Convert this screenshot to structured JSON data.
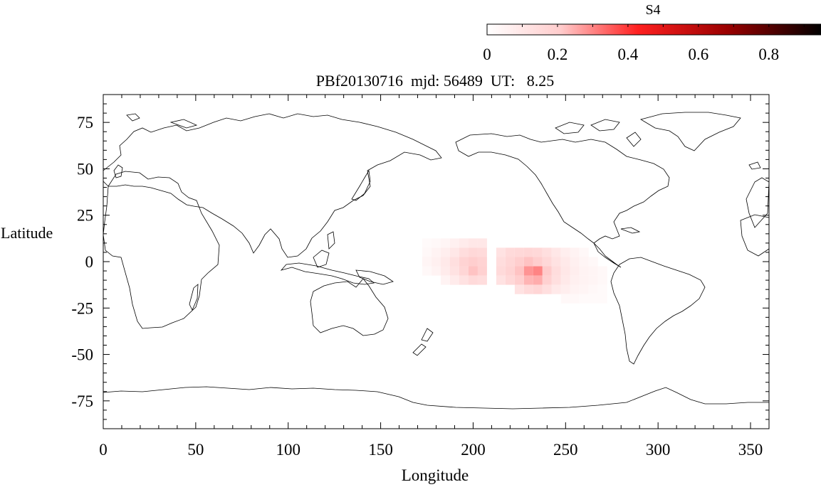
{
  "chart_data": {
    "type": "heatmap",
    "title": "PBf20130716  mjd: 56489  UT:   8.25",
    "xlabel": "Longitude",
    "ylabel": "Latitude",
    "xlim": [
      0,
      360
    ],
    "ylim": [
      -90,
      90
    ],
    "x_ticks": [
      0,
      50,
      100,
      150,
      200,
      250,
      300,
      350
    ],
    "x_tick_labels": [
      "0",
      "50",
      "100",
      "150",
      "200",
      "250",
      "300",
      "350"
    ],
    "y_ticks": [
      75,
      50,
      25,
      0,
      -25,
      -50,
      -75
    ],
    "y_tick_labels": [
      "75",
      "50",
      "25",
      "0",
      "-25",
      "-50",
      "-75"
    ],
    "colorbar": {
      "label": "S4",
      "range": [
        0,
        0.95
      ],
      "ticks": [
        0,
        0.2,
        0.4,
        0.6,
        0.8
      ],
      "tick_labels": [
        "0",
        "0.2",
        "0.4",
        "0.6",
        "0.8"
      ],
      "colormap": [
        "#ffffff",
        "#ff9a9a",
        "#ff0000",
        "#9a0000",
        "#000000"
      ]
    },
    "s4_cells": [
      {
        "lon": 175,
        "lat": 10,
        "s4": 0.02
      },
      {
        "lon": 180,
        "lat": 10,
        "s4": 0.03
      },
      {
        "lon": 185,
        "lat": 10,
        "s4": 0.04
      },
      {
        "lon": 190,
        "lat": 10,
        "s4": 0.06
      },
      {
        "lon": 195,
        "lat": 10,
        "s4": 0.08
      },
      {
        "lon": 200,
        "lat": 10,
        "s4": 0.1
      },
      {
        "lon": 205,
        "lat": 10,
        "s4": 0.1
      },
      {
        "lon": 175,
        "lat": 5,
        "s4": 0.03
      },
      {
        "lon": 180,
        "lat": 5,
        "s4": 0.05
      },
      {
        "lon": 185,
        "lat": 5,
        "s4": 0.07
      },
      {
        "lon": 190,
        "lat": 5,
        "s4": 0.1
      },
      {
        "lon": 195,
        "lat": 5,
        "s4": 0.14
      },
      {
        "lon": 200,
        "lat": 5,
        "s4": 0.16
      },
      {
        "lon": 205,
        "lat": 5,
        "s4": 0.15
      },
      {
        "lon": 175,
        "lat": 0,
        "s4": 0.04
      },
      {
        "lon": 180,
        "lat": 0,
        "s4": 0.06
      },
      {
        "lon": 185,
        "lat": 0,
        "s4": 0.09
      },
      {
        "lon": 190,
        "lat": 0,
        "s4": 0.13
      },
      {
        "lon": 195,
        "lat": 0,
        "s4": 0.18
      },
      {
        "lon": 200,
        "lat": 0,
        "s4": 0.2
      },
      {
        "lon": 205,
        "lat": 0,
        "s4": 0.18
      },
      {
        "lon": 175,
        "lat": -5,
        "s4": 0.03
      },
      {
        "lon": 180,
        "lat": -5,
        "s4": 0.05
      },
      {
        "lon": 185,
        "lat": -5,
        "s4": 0.08
      },
      {
        "lon": 190,
        "lat": -5,
        "s4": 0.12
      },
      {
        "lon": 195,
        "lat": -5,
        "s4": 0.17
      },
      {
        "lon": 200,
        "lat": -5,
        "s4": 0.22
      },
      {
        "lon": 205,
        "lat": -5,
        "s4": 0.19
      },
      {
        "lon": 185,
        "lat": -10,
        "s4": 0.05
      },
      {
        "lon": 190,
        "lat": -10,
        "s4": 0.08
      },
      {
        "lon": 195,
        "lat": -10,
        "s4": 0.12
      },
      {
        "lon": 200,
        "lat": -10,
        "s4": 0.15
      },
      {
        "lon": 205,
        "lat": -10,
        "s4": 0.14
      },
      {
        "lon": 215,
        "lat": 5,
        "s4": 0.12
      },
      {
        "lon": 220,
        "lat": 5,
        "s4": 0.15
      },
      {
        "lon": 225,
        "lat": 5,
        "s4": 0.16
      },
      {
        "lon": 230,
        "lat": 5,
        "s4": 0.17
      },
      {
        "lon": 235,
        "lat": 5,
        "s4": 0.16
      },
      {
        "lon": 240,
        "lat": 5,
        "s4": 0.13
      },
      {
        "lon": 245,
        "lat": 5,
        "s4": 0.1
      },
      {
        "lon": 250,
        "lat": 5,
        "s4": 0.07
      },
      {
        "lon": 255,
        "lat": 5,
        "s4": 0.05
      },
      {
        "lon": 260,
        "lat": 5,
        "s4": 0.03
      },
      {
        "lon": 215,
        "lat": 0,
        "s4": 0.14
      },
      {
        "lon": 220,
        "lat": 0,
        "s4": 0.17
      },
      {
        "lon": 225,
        "lat": 0,
        "s4": 0.2
      },
      {
        "lon": 230,
        "lat": 0,
        "s4": 0.22
      },
      {
        "lon": 235,
        "lat": 0,
        "s4": 0.2
      },
      {
        "lon": 240,
        "lat": 0,
        "s4": 0.16
      },
      {
        "lon": 245,
        "lat": 0,
        "s4": 0.12
      },
      {
        "lon": 250,
        "lat": 0,
        "s4": 0.09
      },
      {
        "lon": 255,
        "lat": 0,
        "s4": 0.06
      },
      {
        "lon": 260,
        "lat": 0,
        "s4": 0.04
      },
      {
        "lon": 265,
        "lat": 0,
        "s4": 0.03
      },
      {
        "lon": 215,
        "lat": -5,
        "s4": 0.15
      },
      {
        "lon": 220,
        "lat": -5,
        "s4": 0.18
      },
      {
        "lon": 225,
        "lat": -5,
        "s4": 0.22
      },
      {
        "lon": 230,
        "lat": -5,
        "s4": 0.28
      },
      {
        "lon": 235,
        "lat": -5,
        "s4": 0.3
      },
      {
        "lon": 240,
        "lat": -5,
        "s4": 0.21
      },
      {
        "lon": 245,
        "lat": -5,
        "s4": 0.14
      },
      {
        "lon": 250,
        "lat": -5,
        "s4": 0.1
      },
      {
        "lon": 255,
        "lat": -5,
        "s4": 0.07
      },
      {
        "lon": 260,
        "lat": -5,
        "s4": 0.05
      },
      {
        "lon": 265,
        "lat": -5,
        "s4": 0.04
      },
      {
        "lon": 270,
        "lat": -5,
        "s4": 0.03
      },
      {
        "lon": 215,
        "lat": -10,
        "s4": 0.12
      },
      {
        "lon": 220,
        "lat": -10,
        "s4": 0.16
      },
      {
        "lon": 225,
        "lat": -10,
        "s4": 0.2
      },
      {
        "lon": 230,
        "lat": -10,
        "s4": 0.24
      },
      {
        "lon": 235,
        "lat": -10,
        "s4": 0.25
      },
      {
        "lon": 240,
        "lat": -10,
        "s4": 0.19
      },
      {
        "lon": 245,
        "lat": -10,
        "s4": 0.13
      },
      {
        "lon": 250,
        "lat": -10,
        "s4": 0.09
      },
      {
        "lon": 255,
        "lat": -10,
        "s4": 0.06
      },
      {
        "lon": 260,
        "lat": -10,
        "s4": 0.05
      },
      {
        "lon": 265,
        "lat": -10,
        "s4": 0.04
      },
      {
        "lon": 270,
        "lat": -10,
        "s4": 0.03
      },
      {
        "lon": 225,
        "lat": -15,
        "s4": 0.12
      },
      {
        "lon": 230,
        "lat": -15,
        "s4": 0.15
      },
      {
        "lon": 235,
        "lat": -15,
        "s4": 0.17
      },
      {
        "lon": 240,
        "lat": -15,
        "s4": 0.13
      },
      {
        "lon": 245,
        "lat": -15,
        "s4": 0.09
      },
      {
        "lon": 250,
        "lat": -15,
        "s4": 0.07
      },
      {
        "lon": 255,
        "lat": -15,
        "s4": 0.05
      },
      {
        "lon": 260,
        "lat": -15,
        "s4": 0.04
      },
      {
        "lon": 265,
        "lat": -15,
        "s4": 0.03
      },
      {
        "lon": 270,
        "lat": -15,
        "s4": 0.02
      },
      {
        "lon": 250,
        "lat": -20,
        "s4": 0.03
      },
      {
        "lon": 255,
        "lat": -20,
        "s4": 0.03
      },
      {
        "lon": 260,
        "lat": -20,
        "s4": 0.02
      },
      {
        "lon": 265,
        "lat": -20,
        "s4": 0.02
      },
      {
        "lon": 270,
        "lat": -20,
        "s4": 0.02
      }
    ],
    "cell_size_deg": {
      "lon": 5,
      "lat": 5
    },
    "coastline_outline": true
  }
}
